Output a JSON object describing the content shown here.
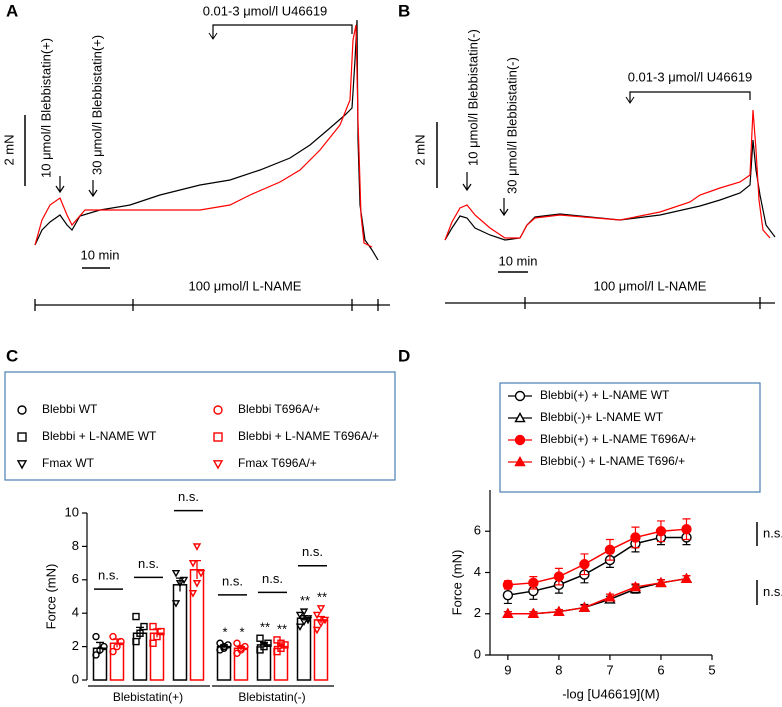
{
  "trace_panels": [
    {
      "label": "A",
      "agonist": "0.01-3 μmol/l U46619",
      "pre1": "10 μmol/l Blebbistatin(+)",
      "pre2": "30 μmol/l Blebbistatin(+)",
      "force_scale": "2 mN",
      "time_scale": "10 min",
      "background": "100 μmol/l L-NAME"
    },
    {
      "label": "B",
      "agonist": "0.01-3 μmol/l U46619",
      "pre1": "10 μmol/l Blebbistatin(-)",
      "pre2": "30 μmol/l Blebbistatin(-)",
      "force_scale": "2 mN",
      "time_scale": "10 min",
      "background": "100 μmol/l L-NAME"
    }
  ],
  "chart_data": [
    {
      "type": "bar",
      "panel_label": "C",
      "y_label": "Force (mN)",
      "categories": [
        "Blebistatin(+)",
        "Blebistatin(-)"
      ],
      "ylim": [
        0,
        10
      ],
      "yticks": [
        0,
        2,
        4,
        6,
        8,
        10
      ],
      "ns_labels": [
        [
          "n.s.",
          "n.s.",
          "n.s."
        ],
        [
          "n.s.",
          "n.s.",
          "n.s."
        ]
      ],
      "series": [
        {
          "name": "Blebbi WT",
          "color": "#000000",
          "marker": "circle",
          "values": [
            1.9,
            2.0
          ],
          "errors": [
            0.35,
            0.1
          ],
          "significance": [
            null,
            "*"
          ],
          "points": [
            [
              1.5,
              1.8,
              2.0,
              2.6
            ],
            [
              1.8,
              2.0,
              2.1,
              2.2,
              1.9
            ]
          ]
        },
        {
          "name": "Blebbi T696A/+",
          "color": "#ff0000",
          "marker": "circle",
          "values": [
            2.2,
            1.9
          ],
          "errors": [
            0.25,
            0.1
          ],
          "significance": [
            null,
            "*"
          ],
          "points": [
            [
              1.7,
              2.0,
              2.3,
              2.6
            ],
            [
              1.6,
              1.8,
              2.0,
              2.2,
              1.9
            ]
          ]
        },
        {
          "name": "Blebbi + L-NAME WT",
          "color": "#000000",
          "marker": "square",
          "values": [
            2.8,
            2.1
          ],
          "errors": [
            0.35,
            0.15
          ],
          "significance": [
            null,
            "**"
          ],
          "points": [
            [
              2.3,
              2.8,
              3.2,
              3.8
            ],
            [
              1.8,
              2.0,
              2.2,
              2.5
            ]
          ]
        },
        {
          "name": "Blebbi + L-NAME T696A/+",
          "color": "#ff0000",
          "marker": "square",
          "values": [
            2.8,
            2.0
          ],
          "errors": [
            0.25,
            0.15
          ],
          "significance": [
            null,
            "**"
          ],
          "points": [
            [
              2.2,
              2.6,
              2.9,
              3.2
            ],
            [
              1.7,
              1.9,
              2.1,
              2.4,
              2.2
            ]
          ]
        },
        {
          "name": "Fmax WT",
          "color": "#000000",
          "marker": "triangle-down",
          "values": [
            5.7,
            3.7
          ],
          "errors": [
            0.4,
            0.15
          ],
          "significance": [
            null,
            "**"
          ],
          "points": [
            [
              4.6,
              5.8,
              6.0,
              6.4
            ],
            [
              3.2,
              3.5,
              3.7,
              3.9,
              4.1,
              3.6
            ]
          ]
        },
        {
          "name": "Fmax T696A/+",
          "color": "#ff0000",
          "marker": "triangle-down",
          "values": [
            6.6,
            3.6
          ],
          "errors": [
            0.55,
            0.2
          ],
          "significance": [
            null,
            "**"
          ],
          "points": [
            [
              5.2,
              5.8,
              6.4,
              7.0,
              8.0
            ],
            [
              3.0,
              3.4,
              3.6,
              3.9,
              4.3
            ]
          ]
        }
      ]
    },
    {
      "type": "line",
      "panel_label": "D",
      "x_label": "-log [U46619](M)",
      "y_label": "Force (mN)",
      "x": [
        9,
        8.5,
        8,
        7.5,
        7,
        6.5,
        6,
        5.5
      ],
      "xlim": [
        9.35,
        5
      ],
      "xticks": [
        9,
        8,
        7,
        6,
        5
      ],
      "ylim": [
        0,
        8
      ],
      "yticks": [
        0,
        2,
        4,
        6
      ],
      "annotations": [
        "n.s.",
        "n.s."
      ],
      "series": [
        {
          "name": "Blebbi(+) + L-NAME WT",
          "color": "#000000",
          "marker": "circle",
          "filled": false,
          "values": [
            2.9,
            3.1,
            3.4,
            3.9,
            4.6,
            5.4,
            5.7,
            5.7
          ],
          "errors": [
            0.4,
            0.4,
            0.4,
            0.4,
            0.35,
            0.4,
            0.35,
            0.35
          ]
        },
        {
          "name": "Blebbi(-)+ L-NAME WT",
          "color": "#000000",
          "marker": "triangle",
          "filled": false,
          "values": [
            2.0,
            2.0,
            2.1,
            2.3,
            2.7,
            3.2,
            3.5,
            3.7
          ],
          "errors": [
            0.1,
            0.1,
            0.1,
            0.15,
            0.15,
            0.2,
            0.15,
            0.15
          ]
        },
        {
          "name": "Blebbi(+) + L-NAME T696A/+",
          "color": "#ff0000",
          "marker": "circle",
          "filled": true,
          "values": [
            3.4,
            3.5,
            3.8,
            4.4,
            5.1,
            5.7,
            6.0,
            6.1
          ],
          "errors": [
            0.2,
            0.3,
            0.4,
            0.5,
            0.5,
            0.5,
            0.5,
            0.5
          ]
        },
        {
          "name": "Blebbi(-) + L-NAME T696/+",
          "color": "#ff0000",
          "marker": "triangle",
          "filled": true,
          "values": [
            2.0,
            2.0,
            2.1,
            2.3,
            2.8,
            3.3,
            3.5,
            3.7
          ],
          "errors": [
            0.1,
            0.1,
            0.1,
            0.1,
            0.15,
            0.15,
            0.15,
            0.15
          ]
        }
      ]
    }
  ]
}
